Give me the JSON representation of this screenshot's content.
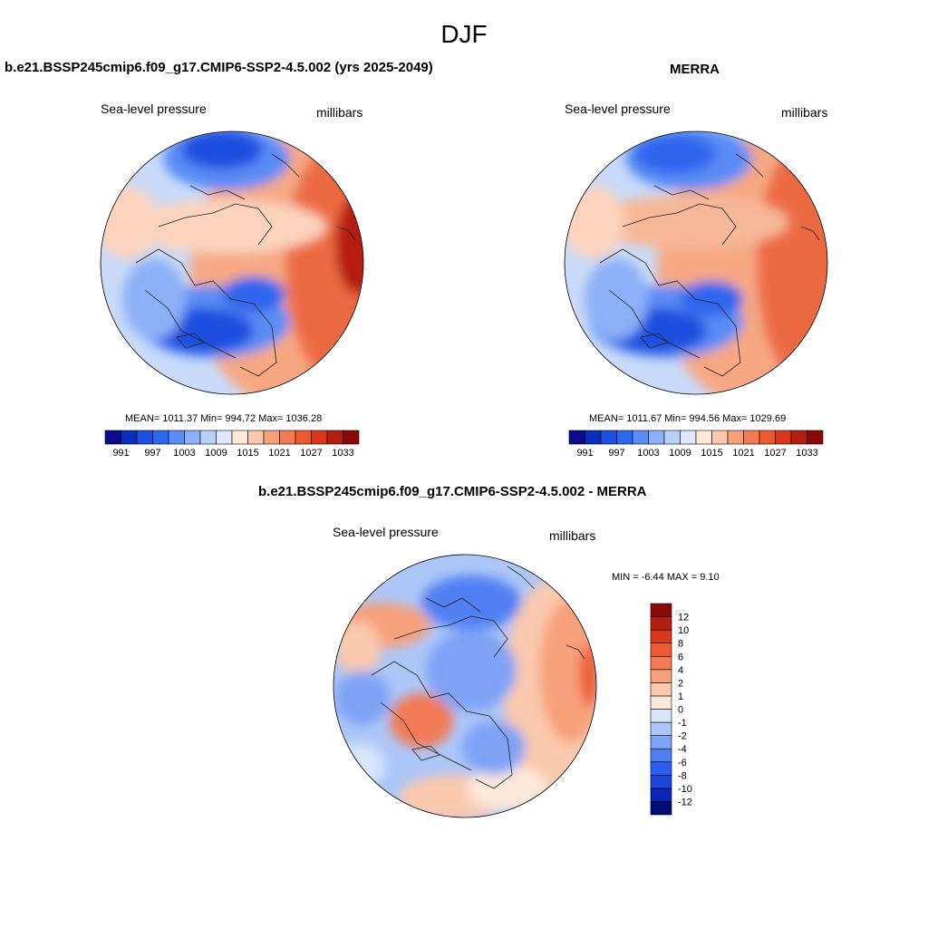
{
  "title": "DJF",
  "panels": [
    {
      "id": "model",
      "title": "b.e21.BSSP245cmip6.f09_g17.CMIP6-SSP2-4.5.002 (yrs 2025-2049)",
      "variable": "Sea-level pressure",
      "units": "millibars",
      "stats": "MEAN= 1011.37  Min= 994.72  Max= 1036.28"
    },
    {
      "id": "obs",
      "title": "MERRA",
      "variable": "Sea-level pressure",
      "units": "millibars",
      "stats": "MEAN= 1011.67  Min= 994.56  Max= 1029.69"
    },
    {
      "id": "diff",
      "title": "b.e21.BSSP245cmip6.f09_g17.CMIP6-SSP2-4.5.002 - MERRA",
      "variable": "Sea-level pressure",
      "units": "millibars",
      "stats": "MIN =  -6.44 MAX =   9.10"
    }
  ],
  "colorbar_abs": {
    "colors": [
      "#0a0a8c",
      "#0c2fb8",
      "#1f4fdf",
      "#2f66ee",
      "#5a8cf5",
      "#8cb0f7",
      "#b8cff8",
      "#dfe9fb",
      "#fde8da",
      "#fbc9ad",
      "#f7a07c",
      "#f27a54",
      "#ec5a34",
      "#d9381e",
      "#b51d10",
      "#8a0a05"
    ],
    "labels": [
      "991",
      "997",
      "1003",
      "1009",
      "1015",
      "1021",
      "1027",
      "1033"
    ]
  },
  "colorbar_diff": {
    "colors": [
      "#000a78",
      "#0a26b8",
      "#1a44dc",
      "#2b5ef0",
      "#5180f3",
      "#7ea3f6",
      "#adc6f8",
      "#d8e6fb",
      "#fde8da",
      "#fbc9ad",
      "#f7a07c",
      "#f27a54",
      "#ec5a34",
      "#d9381e",
      "#b51d10",
      "#8a0a05"
    ],
    "labels": [
      "12",
      "10",
      "8",
      "6",
      "4",
      "2",
      "1",
      "0",
      "-1",
      "-2",
      "-4",
      "-6",
      "-8",
      "-10",
      "-12"
    ]
  }
}
